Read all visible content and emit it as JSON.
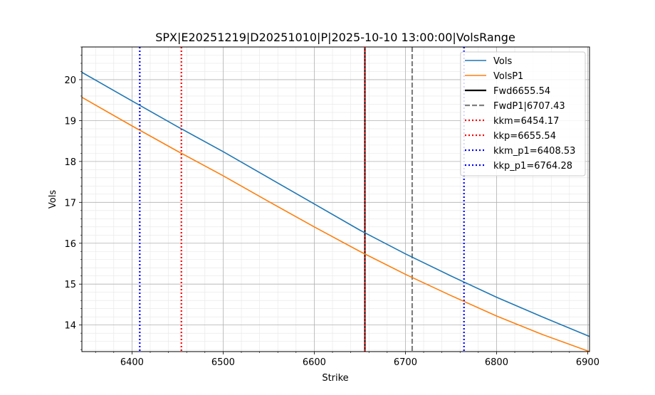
{
  "chart_data": {
    "type": "line",
    "title": "SPX|E20251219|D20251010|P|2025-10-10 13:00:00|VolsRange",
    "xlabel": "Strike",
    "ylabel": "Vols",
    "xlim": [
      6345,
      6902
    ],
    "ylim": [
      13.35,
      20.8
    ],
    "xticks": [
      6400,
      6500,
      6600,
      6700,
      6800,
      6900
    ],
    "yticks": [
      14,
      15,
      16,
      17,
      18,
      19,
      20
    ],
    "grid": true,
    "legend_position": "top-right",
    "series": [
      {
        "name": "Vols",
        "color": "#1f77b4",
        "x": [
          6345,
          6400,
          6450,
          6500,
          6550,
          6600,
          6650,
          6700,
          6750,
          6800,
          6850,
          6902
        ],
        "y": [
          20.18,
          19.48,
          18.85,
          18.24,
          17.6,
          16.96,
          16.32,
          15.74,
          15.2,
          14.68,
          14.2,
          13.72
        ]
      },
      {
        "name": "VolsP1",
        "color": "#ff7f0e",
        "x": [
          6345,
          6400,
          6450,
          6500,
          6550,
          6600,
          6650,
          6700,
          6750,
          6800,
          6850,
          6902
        ],
        "y": [
          19.57,
          18.87,
          18.25,
          17.65,
          17.02,
          16.4,
          15.8,
          15.24,
          14.72,
          14.22,
          13.77,
          13.35
        ]
      }
    ],
    "vlines": [
      {
        "name": "Fwd6655.54",
        "x": 6655.54,
        "color": "#000000",
        "style": "solid"
      },
      {
        "name": "FwdP1|6707.43",
        "x": 6707.43,
        "color": "#808080",
        "style": "dashed"
      },
      {
        "name": "kkm=6454.17",
        "x": 6454.17,
        "color": "#ff0000",
        "style": "dotted"
      },
      {
        "name": "kkp=6655.54",
        "x": 6655.54,
        "color": "#ff0000",
        "style": "dotted"
      },
      {
        "name": "kkm_p1=6408.53",
        "x": 6408.53,
        "color": "#0000ff",
        "style": "dotted"
      },
      {
        "name": "kkp_p1=6764.28",
        "x": 6764.28,
        "color": "#0000ff",
        "style": "dotted"
      }
    ]
  }
}
